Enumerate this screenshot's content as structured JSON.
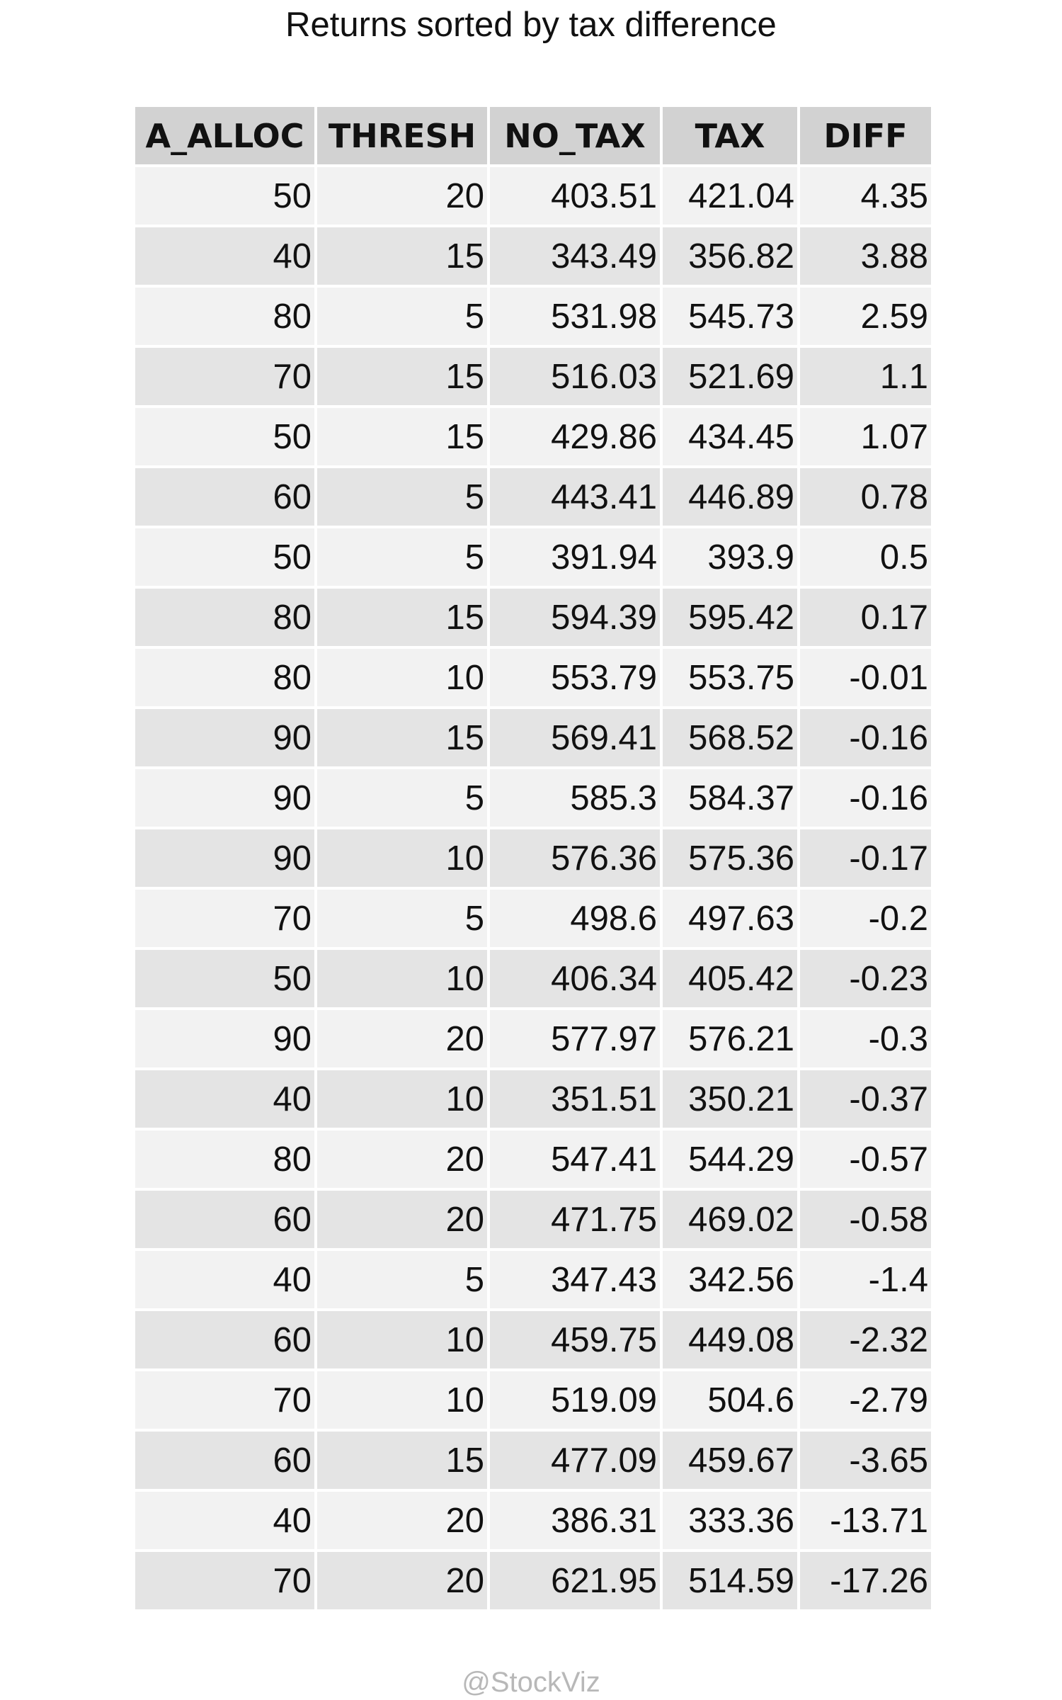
{
  "chart_data": {
    "type": "table",
    "title": "Returns sorted by tax difference",
    "columns": [
      "A_ALLOC",
      "THRESH",
      "NO_TAX",
      "TAX",
      "DIFF"
    ],
    "rows": [
      [
        "50",
        "20",
        "403.51",
        "421.04",
        "4.35"
      ],
      [
        "40",
        "15",
        "343.49",
        "356.82",
        "3.88"
      ],
      [
        "80",
        "5",
        "531.98",
        "545.73",
        "2.59"
      ],
      [
        "70",
        "15",
        "516.03",
        "521.69",
        "1.1"
      ],
      [
        "50",
        "15",
        "429.86",
        "434.45",
        "1.07"
      ],
      [
        "60",
        "5",
        "443.41",
        "446.89",
        "0.78"
      ],
      [
        "50",
        "5",
        "391.94",
        "393.9",
        "0.5"
      ],
      [
        "80",
        "15",
        "594.39",
        "595.42",
        "0.17"
      ],
      [
        "80",
        "10",
        "553.79",
        "553.75",
        "-0.01"
      ],
      [
        "90",
        "15",
        "569.41",
        "568.52",
        "-0.16"
      ],
      [
        "90",
        "5",
        "585.3",
        "584.37",
        "-0.16"
      ],
      [
        "90",
        "10",
        "576.36",
        "575.36",
        "-0.17"
      ],
      [
        "70",
        "5",
        "498.6",
        "497.63",
        "-0.2"
      ],
      [
        "50",
        "10",
        "406.34",
        "405.42",
        "-0.23"
      ],
      [
        "90",
        "20",
        "577.97",
        "576.21",
        "-0.3"
      ],
      [
        "40",
        "10",
        "351.51",
        "350.21",
        "-0.37"
      ],
      [
        "80",
        "20",
        "547.41",
        "544.29",
        "-0.57"
      ],
      [
        "60",
        "20",
        "471.75",
        "469.02",
        "-0.58"
      ],
      [
        "40",
        "5",
        "347.43",
        "342.56",
        "-1.4"
      ],
      [
        "60",
        "10",
        "459.75",
        "449.08",
        "-2.32"
      ],
      [
        "70",
        "10",
        "519.09",
        "504.6",
        "-2.79"
      ],
      [
        "60",
        "15",
        "477.09",
        "459.67",
        "-3.65"
      ],
      [
        "40",
        "20",
        "386.31",
        "333.36",
        "-13.71"
      ],
      [
        "70",
        "20",
        "621.95",
        "514.59",
        "-17.26"
      ]
    ]
  },
  "footer": "@StockViz"
}
